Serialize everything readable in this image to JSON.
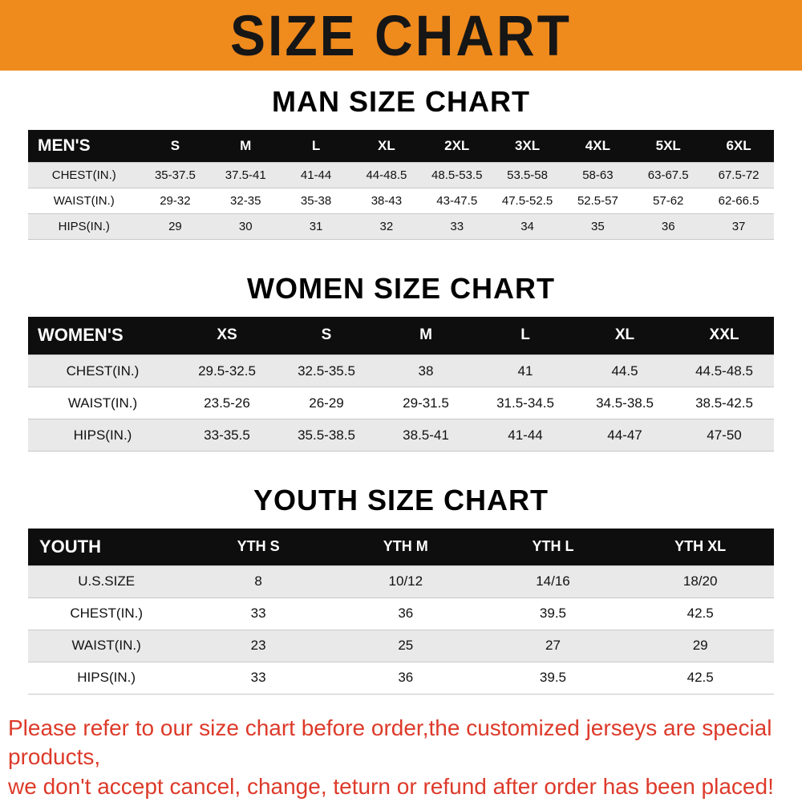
{
  "banner": {
    "title": "SIZE CHART"
  },
  "sections": [
    {
      "heading": "MAN SIZE CHART",
      "table": {
        "header": [
          "MEN'S",
          "S",
          "M",
          "L",
          "XL",
          "2XL",
          "3XL",
          "4XL",
          "5XL",
          "6XL"
        ],
        "rows": [
          [
            "CHEST(IN.)",
            "35-37.5",
            "37.5-41",
            "41-44",
            "44-48.5",
            "48.5-53.5",
            "53.5-58",
            "58-63",
            "63-67.5",
            "67.5-72"
          ],
          [
            "WAIST(IN.)",
            "29-32",
            "32-35",
            "35-38",
            "38-43",
            "43-47.5",
            "47.5-52.5",
            "52.5-57",
            "57-62",
            "62-66.5"
          ],
          [
            "HIPS(IN.)",
            "29",
            "30",
            "31",
            "32",
            "33",
            "34",
            "35",
            "36",
            "37"
          ]
        ]
      }
    },
    {
      "heading": "WOMEN SIZE CHART",
      "table": {
        "header": [
          "WOMEN'S",
          "XS",
          "S",
          "M",
          "L",
          "XL",
          "XXL"
        ],
        "rows": [
          [
            "CHEST(IN.)",
            "29.5-32.5",
            "32.5-35.5",
            "38",
            "41",
            "44.5",
            "44.5-48.5"
          ],
          [
            "WAIST(IN.)",
            "23.5-26",
            "26-29",
            "29-31.5",
            "31.5-34.5",
            "34.5-38.5",
            "38.5-42.5"
          ],
          [
            "HIPS(IN.)",
            "33-35.5",
            "35.5-38.5",
            "38.5-41",
            "41-44",
            "44-47",
            "47-50"
          ]
        ]
      }
    },
    {
      "heading": "YOUTH SIZE CHART",
      "table": {
        "header": [
          "YOUTH",
          "YTH S",
          "YTH M",
          "YTH L",
          "YTH XL"
        ],
        "rows": [
          [
            "U.S.SIZE",
            "8",
            "10/12",
            "14/16",
            "18/20"
          ],
          [
            "CHEST(IN.)",
            "33",
            "36",
            "39.5",
            "42.5"
          ],
          [
            "WAIST(IN.)",
            "23",
            "25",
            "27",
            "29"
          ],
          [
            "HIPS(IN.)",
            "33",
            "36",
            "39.5",
            "42.5"
          ]
        ]
      }
    }
  ],
  "footer": {
    "line1": "Please refer to our size chart before order,the customized jerseys are special products,",
    "line2": "we don't accept cancel, change, teturn or refund after order has been placed!"
  },
  "colors": {
    "banner_bg": "#ef8a1d",
    "header_bg": "#0e0e0e",
    "stripe": "#e9e9e9",
    "footer_text": "#dd3a2a"
  }
}
